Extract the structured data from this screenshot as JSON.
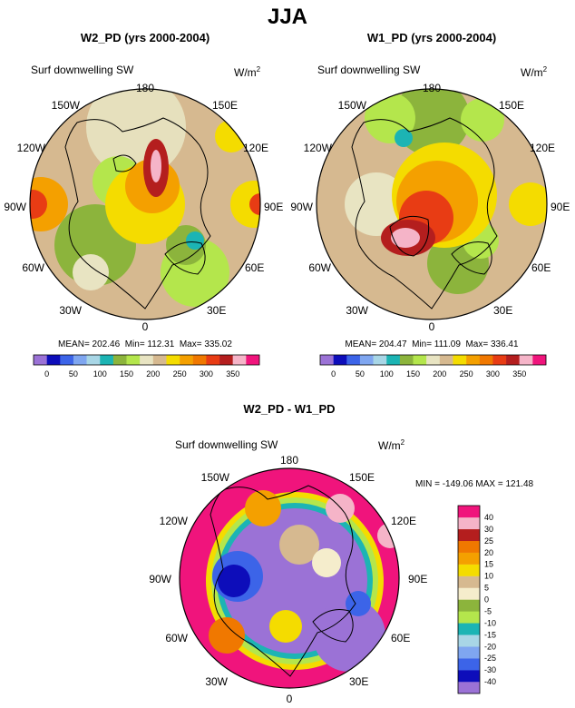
{
  "figure_title": "JJA",
  "colors": {
    "ramp_mean": [
      "#9b72d6",
      "#0d0dba",
      "#3c64e8",
      "#7fa6f0",
      "#a8d6e6",
      "#1cb4b4",
      "#8cb43c",
      "#b4e64c",
      "#e8e4c2",
      "#d6b990",
      "#f4dc00",
      "#f4a000",
      "#f07800",
      "#e83c14",
      "#b41e1e",
      "#f5b4c8",
      "#f0147c"
    ],
    "ramp_diff": [
      "#9b72d6",
      "#0d0dba",
      "#3c64e8",
      "#7fa6f0",
      "#a8d6e6",
      "#1cb4b4",
      "#b4e64c",
      "#8cb43c",
      "#f5edcc",
      "#d6b990",
      "#f4dc00",
      "#f4a000",
      "#f07800",
      "#b41e1e",
      "#f5b4c8",
      "#f0147c"
    ]
  },
  "chart_data": [
    {
      "type": "heatmap",
      "title": "W2_PD (yrs 2000-2004)",
      "variable_label": "Surf downwelling SW",
      "units": "W/m",
      "units_sup": "2",
      "lon_labels": [
        "180",
        "150E",
        "120E",
        "90E",
        "60E",
        "30E",
        "0",
        "30W",
        "60W",
        "90W",
        "120W",
        "150W"
      ],
      "stats": {
        "text": "MEAN= 202.46  Min= 112.31  Max= 335.02",
        "mean": 202.46,
        "min": 112.31,
        "max": 335.02
      },
      "colorbar": {
        "levels": [
          0,
          25,
          50,
          75,
          100,
          125,
          150,
          175,
          200,
          225,
          250,
          275,
          300,
          325,
          350,
          375
        ],
        "tick_labels": [
          "0",
          "50",
          "100",
          "150",
          "200",
          "250",
          "300",
          "350"
        ]
      }
    },
    {
      "type": "heatmap",
      "title": "W1_PD (yrs 2000-2004)",
      "variable_label": "Surf downwelling SW",
      "units": "W/m",
      "units_sup": "2",
      "lon_labels": [
        "180",
        "150E",
        "120E",
        "90E",
        "60E",
        "30E",
        "0",
        "30W",
        "60W",
        "90W",
        "120W",
        "150W"
      ],
      "stats": {
        "text": "MEAN= 204.47  Min= 111.09  Max= 336.41",
        "mean": 204.47,
        "min": 111.09,
        "max": 336.41
      },
      "colorbar": {
        "levels": [
          0,
          25,
          50,
          75,
          100,
          125,
          150,
          175,
          200,
          225,
          250,
          275,
          300,
          325,
          350,
          375
        ],
        "tick_labels": [
          "0",
          "50",
          "100",
          "150",
          "200",
          "250",
          "300",
          "350"
        ]
      }
    },
    {
      "type": "heatmap",
      "title": "W2_PD - W1_PD",
      "variable_label": "Surf downwelling SW",
      "units": "W/m",
      "units_sup": "2",
      "lon_labels": [
        "180",
        "150E",
        "120E",
        "90E",
        "60E",
        "30E",
        "0",
        "30W",
        "60W",
        "90W",
        "120W",
        "150W"
      ],
      "stats": {
        "text": "MIN = -149.06 MAX = 121.48",
        "min": -149.06,
        "max": 121.48
      },
      "colorbar": {
        "levels": [
          -40,
          -30,
          -25,
          -20,
          -15,
          -10,
          -5,
          0,
          5,
          10,
          15,
          20,
          25,
          30,
          40
        ],
        "tick_labels": [
          "40",
          "30",
          "25",
          "20",
          "15",
          "10",
          "5",
          "0",
          "-5",
          "-10",
          "-15",
          "-20",
          "-25",
          "-30",
          "-40"
        ]
      }
    }
  ]
}
